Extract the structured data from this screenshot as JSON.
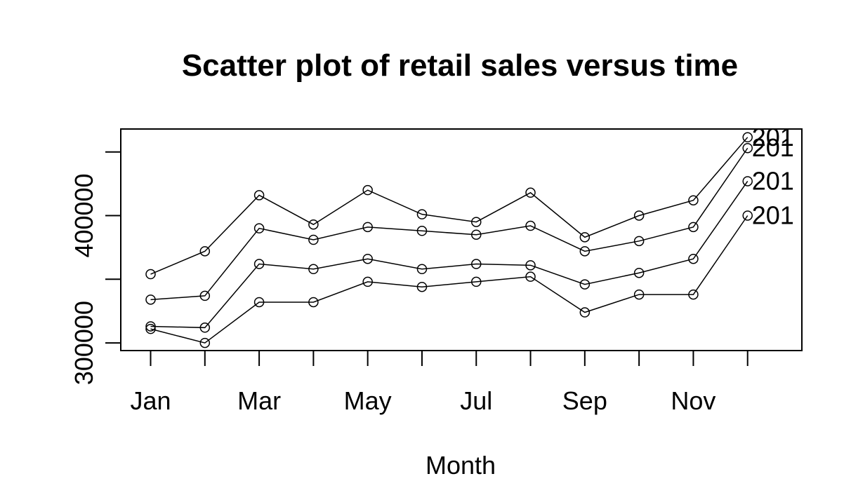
{
  "chart_data": {
    "type": "line",
    "title": "Scatter plot of retail sales versus time",
    "xlabel": "Month",
    "ylabel": "",
    "x": [
      1,
      2,
      3,
      4,
      5,
      6,
      7,
      8,
      9,
      10,
      11,
      12
    ],
    "x_ticks": [
      1,
      3,
      5,
      7,
      9,
      11
    ],
    "x_tick_labels": [
      "Jan",
      "Mar",
      "May",
      "Jul",
      "Sep",
      "Nov"
    ],
    "x_minor_ticks": [
      1,
      2,
      3,
      4,
      5,
      6,
      7,
      8,
      9,
      10,
      11,
      12
    ],
    "xlim": [
      0.45,
      13.0
    ],
    "y_ticks": [
      300000,
      350000,
      400000,
      450000
    ],
    "y_tick_labels": [
      "300000",
      "",
      "400000",
      ""
    ],
    "ylim": [
      294000,
      468000
    ],
    "grid": false,
    "marker": "open-circle",
    "line_color": "#000000",
    "series": [
      {
        "name": "201",
        "label_y": 461500,
        "values": [
          354000,
          372000,
          416000,
          393000,
          420000,
          401000,
          395000,
          418000,
          383000,
          400000,
          412000,
          461500
        ]
      },
      {
        "name": "201",
        "label_y": 453000,
        "values": [
          334000,
          337000,
          390000,
          381000,
          391000,
          388000,
          385000,
          392000,
          372000,
          380000,
          391000,
          453000
        ]
      },
      {
        "name": "201",
        "label_y": 427000,
        "values": [
          313000,
          312000,
          362000,
          358000,
          366000,
          358000,
          362000,
          361000,
          346000,
          355000,
          366000,
          427000
        ]
      },
      {
        "name": "201",
        "label_y": 400000,
        "values": [
          311000,
          300000,
          332000,
          332000,
          348000,
          344000,
          348000,
          352000,
          324000,
          338000,
          338000,
          400000
        ]
      }
    ]
  }
}
